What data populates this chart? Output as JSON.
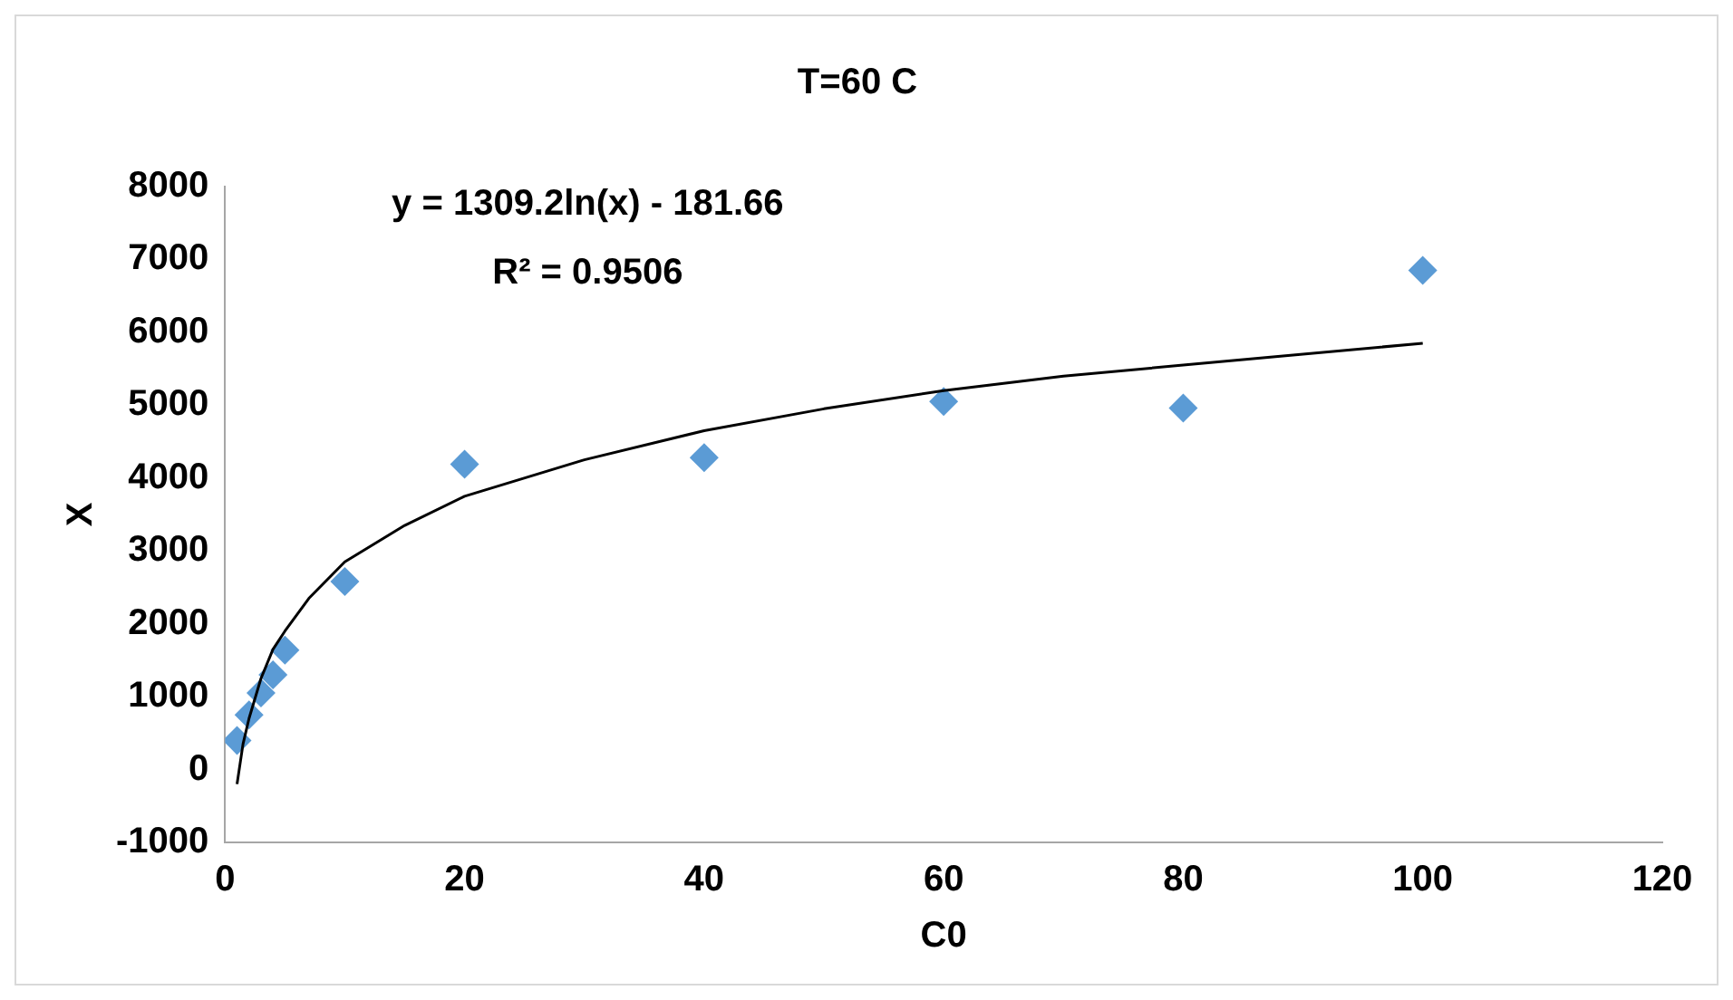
{
  "chart_data": {
    "type": "scatter",
    "title": "T=60 C",
    "xlabel": "C0",
    "ylabel": "X",
    "annotations": [
      "y = 1309.2ln(x) - 181.66",
      "R² = 0.9506"
    ],
    "x": [
      1,
      2,
      3,
      4,
      5,
      10,
      20,
      40,
      60,
      80,
      100
    ],
    "series": [
      {
        "type": "scatter",
        "color": "#5b9bd5",
        "marker": "diamond",
        "values": [
          400,
          750,
          1050,
          1300,
          1640,
          2580,
          4190,
          4280,
          5050,
          4960,
          6850
        ]
      },
      {
        "type": "line",
        "color": "#000000",
        "marker": "none",
        "x": [
          1,
          1.5,
          2,
          3,
          4,
          5,
          7,
          10,
          15,
          20,
          30,
          40,
          50,
          60,
          70,
          80,
          90,
          100
        ],
        "values": [
          -200,
          350,
          700,
          1250,
          1650,
          1900,
          2350,
          2850,
          3350,
          3750,
          4250,
          4650,
          4950,
          5200,
          5400,
          5550,
          5700,
          5850
        ]
      }
    ],
    "xlim": [
      0,
      120
    ],
    "xticks": [
      0,
      20,
      40,
      60,
      80,
      100,
      120
    ],
    "ylim": [
      -1000,
      8000
    ],
    "yticks": [
      -1000,
      0,
      1000,
      2000,
      3000,
      4000,
      5000,
      6000,
      7000,
      8000
    ],
    "grid": false,
    "legend": false
  }
}
